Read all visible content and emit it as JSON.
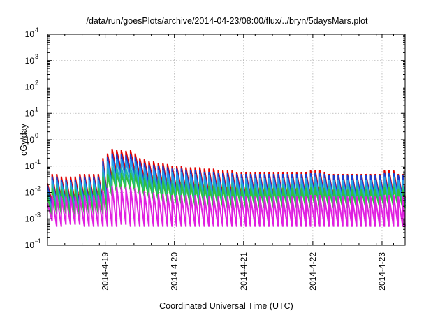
{
  "chart_data": {
    "type": "line",
    "title": "/data/run/goesPlots/archive/2014-04-23/08:00/flux/../bryn/5daysMars.plot",
    "xlabel": "Coordinated Universal Time (UTC)",
    "ylabel": "cGy/day",
    "yscale": "log",
    "ylim": [
      0.0001,
      10000
    ],
    "xlim": [
      "2014-04-18 04:00",
      "2014-04-23 08:00"
    ],
    "grid": true,
    "y_ticks": [
      {
        "value": 0.0001,
        "base": "10",
        "exp": "-4"
      },
      {
        "value": 0.001,
        "base": "10",
        "exp": "-3"
      },
      {
        "value": 0.01,
        "base": "10",
        "exp": "-2"
      },
      {
        "value": 0.1,
        "base": "10",
        "exp": "-1"
      },
      {
        "value": 1,
        "base": "10",
        "exp": "0"
      },
      {
        "value": 10,
        "base": "10",
        "exp": "1"
      },
      {
        "value": 100,
        "base": "10",
        "exp": "2"
      },
      {
        "value": 1000,
        "base": "10",
        "exp": "3"
      },
      {
        "value": 10000,
        "base": "10",
        "exp": "4"
      }
    ],
    "x_ticks": [
      {
        "value": "2014-04-19 00:00",
        "label": "2014-4-19"
      },
      {
        "value": "2014-04-20 00:00",
        "label": "2014-4-20"
      },
      {
        "value": "2014-04-21 00:00",
        "label": "2014-4-21"
      },
      {
        "value": "2014-04-22 00:00",
        "label": "2014-4-22"
      },
      {
        "value": "2014-04-23 00:00",
        "label": "2014-4-23"
      }
    ],
    "cycle_hours": 1.6,
    "series": [
      {
        "color": "#e00000",
        "peaks": [
          0.022,
          0.05,
          0.05,
          0.04,
          0.04,
          0.04,
          0.04,
          0.05,
          0.05,
          0.05,
          0.05,
          0.05,
          0.2,
          0.3,
          0.45,
          0.4,
          0.4,
          0.38,
          0.4,
          0.3,
          0.2,
          0.18,
          0.15,
          0.15,
          0.13,
          0.13,
          0.12,
          0.1,
          0.1,
          0.1,
          0.09,
          0.09,
          0.09,
          0.09,
          0.08,
          0.08,
          0.08,
          0.07,
          0.07,
          0.07,
          0.07,
          0.06,
          0.06,
          0.06,
          0.06,
          0.06,
          0.06,
          0.06,
          0.06,
          0.06,
          0.06,
          0.06,
          0.06,
          0.06,
          0.06,
          0.06,
          0.06,
          0.07,
          0.07,
          0.07,
          0.06,
          0.05,
          0.05,
          0.05,
          0.05,
          0.05,
          0.05,
          0.05,
          0.05,
          0.05,
          0.05,
          0.05,
          0.05,
          0.07,
          0.07,
          0.07,
          0.05,
          0.05,
          0.05,
          0.05
        ],
        "troughs": [
          0.004,
          0.005,
          0.005,
          0.005,
          0.004,
          0.004,
          0.004,
          0.005,
          0.005,
          0.005,
          0.005,
          0.005,
          0.005,
          0.03,
          0.05,
          0.06,
          0.06,
          0.06,
          0.05,
          0.04,
          0.03,
          0.025,
          0.02,
          0.02,
          0.018,
          0.016,
          0.015,
          0.012,
          0.012,
          0.012,
          0.01,
          0.01,
          0.01,
          0.009,
          0.008,
          0.008,
          0.008,
          0.008,
          0.007,
          0.007,
          0.007,
          0.007,
          0.006,
          0.006,
          0.006,
          0.006,
          0.006,
          0.006,
          0.006,
          0.006,
          0.006,
          0.006,
          0.006,
          0.006,
          0.006,
          0.006,
          0.006,
          0.007,
          0.007,
          0.007,
          0.006,
          0.006,
          0.006,
          0.006,
          0.006,
          0.006,
          0.006,
          0.006,
          0.006,
          0.006,
          0.006,
          0.006,
          0.006,
          0.007,
          0.007,
          0.007,
          0.006,
          0.006,
          0.006,
          0.006
        ]
      },
      {
        "color": "#1a3fd0",
        "peaks": [
          0.018,
          0.04,
          0.04,
          0.03,
          0.03,
          0.03,
          0.03,
          0.04,
          0.04,
          0.04,
          0.04,
          0.04,
          0.15,
          0.22,
          0.3,
          0.28,
          0.28,
          0.26,
          0.28,
          0.22,
          0.15,
          0.13,
          0.11,
          0.11,
          0.1,
          0.1,
          0.09,
          0.08,
          0.08,
          0.08,
          0.07,
          0.07,
          0.07,
          0.07,
          0.06,
          0.06,
          0.06,
          0.055,
          0.055,
          0.055,
          0.055,
          0.05,
          0.05,
          0.05,
          0.05,
          0.05,
          0.05,
          0.05,
          0.05,
          0.05,
          0.05,
          0.05,
          0.05,
          0.05,
          0.05,
          0.05,
          0.05,
          0.055,
          0.055,
          0.055,
          0.05,
          0.045,
          0.045,
          0.045,
          0.045,
          0.045,
          0.045,
          0.045,
          0.045,
          0.045,
          0.045,
          0.045,
          0.045,
          0.055,
          0.055,
          0.055,
          0.045,
          0.045,
          0.045,
          0.045
        ],
        "troughs": [
          0.003,
          0.004,
          0.004,
          0.004,
          0.003,
          0.003,
          0.003,
          0.004,
          0.004,
          0.004,
          0.004,
          0.004,
          0.004,
          0.02,
          0.035,
          0.04,
          0.04,
          0.04,
          0.035,
          0.03,
          0.02,
          0.018,
          0.015,
          0.015,
          0.013,
          0.012,
          0.011,
          0.009,
          0.009,
          0.009,
          0.008,
          0.008,
          0.008,
          0.007,
          0.006,
          0.006,
          0.006,
          0.006,
          0.005,
          0.005,
          0.005,
          0.005,
          0.005,
          0.005,
          0.005,
          0.005,
          0.005,
          0.005,
          0.005,
          0.005,
          0.005,
          0.005,
          0.005,
          0.005,
          0.005,
          0.005,
          0.005,
          0.006,
          0.006,
          0.006,
          0.005,
          0.005,
          0.005,
          0.005,
          0.005,
          0.005,
          0.005,
          0.005,
          0.005,
          0.005,
          0.005,
          0.005,
          0.005,
          0.006,
          0.006,
          0.006,
          0.005,
          0.005,
          0.005,
          0.005
        ]
      },
      {
        "color": "#2aa0e8",
        "peaks": [
          0.012,
          0.03,
          0.03,
          0.025,
          0.025,
          0.025,
          0.025,
          0.03,
          0.03,
          0.03,
          0.03,
          0.03,
          0.1,
          0.15,
          0.2,
          0.18,
          0.18,
          0.17,
          0.18,
          0.15,
          0.1,
          0.09,
          0.08,
          0.08,
          0.07,
          0.07,
          0.065,
          0.06,
          0.06,
          0.06,
          0.05,
          0.05,
          0.05,
          0.05,
          0.045,
          0.045,
          0.045,
          0.04,
          0.04,
          0.04,
          0.04,
          0.035,
          0.035,
          0.035,
          0.035,
          0.035,
          0.035,
          0.035,
          0.035,
          0.035,
          0.035,
          0.035,
          0.035,
          0.035,
          0.035,
          0.035,
          0.035,
          0.04,
          0.04,
          0.04,
          0.035,
          0.03,
          0.03,
          0.03,
          0.03,
          0.03,
          0.03,
          0.03,
          0.03,
          0.03,
          0.03,
          0.03,
          0.03,
          0.04,
          0.04,
          0.04,
          0.03,
          0.03,
          0.03,
          0.03
        ],
        "troughs": [
          0.002,
          0.003,
          0.003,
          0.003,
          0.002,
          0.002,
          0.002,
          0.003,
          0.003,
          0.003,
          0.003,
          0.003,
          0.003,
          0.015,
          0.025,
          0.03,
          0.03,
          0.03,
          0.025,
          0.02,
          0.015,
          0.012,
          0.01,
          0.01,
          0.009,
          0.008,
          0.008,
          0.007,
          0.007,
          0.007,
          0.006,
          0.006,
          0.006,
          0.005,
          0.005,
          0.005,
          0.005,
          0.005,
          0.004,
          0.004,
          0.004,
          0.004,
          0.004,
          0.004,
          0.004,
          0.004,
          0.004,
          0.004,
          0.004,
          0.004,
          0.004,
          0.004,
          0.004,
          0.004,
          0.004,
          0.004,
          0.004,
          0.005,
          0.005,
          0.005,
          0.004,
          0.004,
          0.004,
          0.004,
          0.004,
          0.004,
          0.004,
          0.004,
          0.004,
          0.004,
          0.004,
          0.004,
          0.004,
          0.005,
          0.005,
          0.005,
          0.004,
          0.004,
          0.004,
          0.004
        ]
      },
      {
        "color": "#20b8a8",
        "peaks": [
          0.009,
          0.02,
          0.02,
          0.018,
          0.018,
          0.018,
          0.018,
          0.02,
          0.02,
          0.02,
          0.02,
          0.02,
          0.06,
          0.08,
          0.1,
          0.09,
          0.09,
          0.085,
          0.09,
          0.08,
          0.06,
          0.05,
          0.045,
          0.045,
          0.04,
          0.04,
          0.035,
          0.03,
          0.03,
          0.03,
          0.028,
          0.028,
          0.028,
          0.028,
          0.025,
          0.025,
          0.025,
          0.023,
          0.023,
          0.023,
          0.023,
          0.02,
          0.02,
          0.02,
          0.02,
          0.02,
          0.02,
          0.02,
          0.02,
          0.02,
          0.02,
          0.02,
          0.02,
          0.02,
          0.02,
          0.02,
          0.02,
          0.022,
          0.022,
          0.022,
          0.02,
          0.018,
          0.018,
          0.018,
          0.018,
          0.018,
          0.018,
          0.018,
          0.018,
          0.018,
          0.018,
          0.018,
          0.018,
          0.022,
          0.022,
          0.022,
          0.018,
          0.018,
          0.018,
          0.018
        ],
        "troughs": [
          0.0015,
          0.002,
          0.002,
          0.002,
          0.0015,
          0.0015,
          0.0015,
          0.002,
          0.002,
          0.002,
          0.002,
          0.002,
          0.002,
          0.01,
          0.015,
          0.018,
          0.018,
          0.018,
          0.015,
          0.012,
          0.01,
          0.008,
          0.007,
          0.007,
          0.006,
          0.006,
          0.005,
          0.005,
          0.005,
          0.005,
          0.004,
          0.004,
          0.004,
          0.004,
          0.0035,
          0.0035,
          0.0035,
          0.0035,
          0.003,
          0.003,
          0.003,
          0.003,
          0.003,
          0.003,
          0.003,
          0.003,
          0.003,
          0.003,
          0.003,
          0.003,
          0.003,
          0.003,
          0.003,
          0.003,
          0.003,
          0.003,
          0.003,
          0.0035,
          0.0035,
          0.0035,
          0.003,
          0.003,
          0.003,
          0.003,
          0.003,
          0.003,
          0.003,
          0.003,
          0.003,
          0.003,
          0.003,
          0.003,
          0.003,
          0.0035,
          0.0035,
          0.0035,
          0.003,
          0.003,
          0.003,
          0.003
        ]
      },
      {
        "color": "#30c040",
        "peaks": [
          0.007,
          0.015,
          0.015,
          0.013,
          0.013,
          0.013,
          0.013,
          0.015,
          0.015,
          0.015,
          0.015,
          0.015,
          0.04,
          0.05,
          0.06,
          0.055,
          0.055,
          0.05,
          0.055,
          0.05,
          0.04,
          0.035,
          0.03,
          0.03,
          0.028,
          0.028,
          0.025,
          0.022,
          0.022,
          0.022,
          0.02,
          0.02,
          0.02,
          0.02,
          0.018,
          0.018,
          0.018,
          0.016,
          0.016,
          0.016,
          0.016,
          0.015,
          0.015,
          0.015,
          0.015,
          0.015,
          0.015,
          0.015,
          0.015,
          0.015,
          0.015,
          0.015,
          0.015,
          0.015,
          0.015,
          0.015,
          0.015,
          0.016,
          0.016,
          0.016,
          0.015,
          0.013,
          0.013,
          0.013,
          0.013,
          0.013,
          0.013,
          0.013,
          0.013,
          0.013,
          0.013,
          0.013,
          0.013,
          0.016,
          0.016,
          0.016,
          0.013,
          0.013,
          0.013,
          0.013
        ],
        "troughs": [
          0.0012,
          0.0015,
          0.0015,
          0.0015,
          0.0012,
          0.0012,
          0.0012,
          0.0015,
          0.0015,
          0.0015,
          0.0015,
          0.0015,
          0.0015,
          0.007,
          0.01,
          0.012,
          0.012,
          0.012,
          0.01,
          0.008,
          0.007,
          0.006,
          0.005,
          0.005,
          0.0045,
          0.004,
          0.004,
          0.0035,
          0.0035,
          0.0035,
          0.003,
          0.003,
          0.003,
          0.003,
          0.0028,
          0.0028,
          0.0028,
          0.0028,
          0.0025,
          0.0025,
          0.0025,
          0.0025,
          0.0025,
          0.0025,
          0.0025,
          0.0025,
          0.0025,
          0.0025,
          0.0025,
          0.0025,
          0.0025,
          0.0025,
          0.0025,
          0.0025,
          0.0025,
          0.0025,
          0.0025,
          0.0028,
          0.0028,
          0.0028,
          0.0025,
          0.0025,
          0.0025,
          0.0025,
          0.0025,
          0.0025,
          0.0025,
          0.0025,
          0.0025,
          0.0025,
          0.0025,
          0.0025,
          0.0025,
          0.0028,
          0.0028,
          0.0028,
          0.0025,
          0.0025,
          0.0025,
          0.0025
        ]
      },
      {
        "color": "#e020e0",
        "peaks": [
          0.004,
          0.008,
          0.008,
          0.007,
          0.007,
          0.007,
          0.007,
          0.008,
          0.008,
          0.008,
          0.008,
          0.008,
          0.012,
          0.015,
          0.018,
          0.017,
          0.017,
          0.016,
          0.017,
          0.015,
          0.012,
          0.011,
          0.01,
          0.01,
          0.009,
          0.009,
          0.009,
          0.008,
          0.008,
          0.008,
          0.008,
          0.008,
          0.008,
          0.008,
          0.007,
          0.007,
          0.007,
          0.007,
          0.007,
          0.007,
          0.007,
          0.007,
          0.007,
          0.007,
          0.007,
          0.007,
          0.007,
          0.007,
          0.007,
          0.007,
          0.007,
          0.007,
          0.007,
          0.007,
          0.007,
          0.007,
          0.007,
          0.008,
          0.008,
          0.008,
          0.007,
          0.007,
          0.007,
          0.007,
          0.007,
          0.007,
          0.007,
          0.007,
          0.007,
          0.007,
          0.007,
          0.007,
          0.007,
          0.008,
          0.008,
          0.008,
          0.007,
          0.007,
          0.007,
          0.007
        ],
        "troughs": [
          0.0008,
          0.0005,
          0.0005,
          0.0006,
          0.0006,
          0.0006,
          0.0006,
          0.0005,
          0.0005,
          0.0005,
          0.0005,
          0.0005,
          0.0005,
          0.0005,
          0.0005,
          0.0006,
          0.0006,
          0.0005,
          0.0005,
          0.0005,
          0.0005,
          0.0005,
          0.0005,
          0.0005,
          0.0005,
          0.0005,
          0.0005,
          0.0005,
          0.0005,
          0.0005,
          0.0005,
          0.0005,
          0.0005,
          0.0005,
          0.0005,
          0.0005,
          0.0005,
          0.0005,
          0.0005,
          0.0005,
          0.0005,
          0.0005,
          0.0005,
          0.0005,
          0.0005,
          0.0005,
          0.0005,
          0.0005,
          0.0005,
          0.0005,
          0.0005,
          0.0005,
          0.0005,
          0.0005,
          0.0005,
          0.0005,
          0.0005,
          0.0005,
          0.0005,
          0.0005,
          0.0005,
          0.0005,
          0.0005,
          0.0005,
          0.0005,
          0.0005,
          0.0005,
          0.0005,
          0.0005,
          0.0005,
          0.0005,
          0.0005,
          0.0005,
          0.0005,
          0.0005,
          0.0005,
          0.0005,
          0.0005,
          0.0005,
          0.0005
        ]
      }
    ]
  }
}
